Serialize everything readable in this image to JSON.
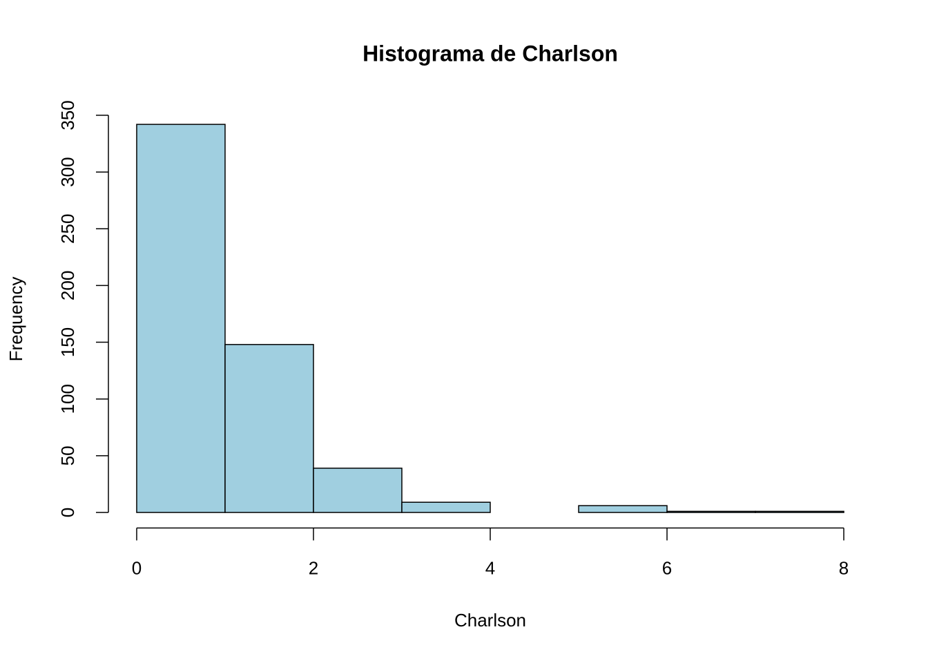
{
  "chart_data": {
    "type": "histogram",
    "title": "Histograma de Charlson",
    "x_label": "Charlson",
    "y_label": "Frequency",
    "bins": [
      0,
      1,
      2,
      3,
      4,
      5,
      6,
      7,
      8
    ],
    "values": [
      342,
      148,
      39,
      9,
      0,
      6,
      1,
      1
    ],
    "color": "#a0cfe0",
    "xlim": [
      -0.32,
      8.32
    ],
    "xticks": [
      0,
      2,
      4,
      6,
      8
    ],
    "ylim": [
      -13.68,
      355.68
    ],
    "yticks": [
      0,
      50,
      100,
      150,
      200,
      250,
      300,
      350
    ],
    "grid": false
  }
}
